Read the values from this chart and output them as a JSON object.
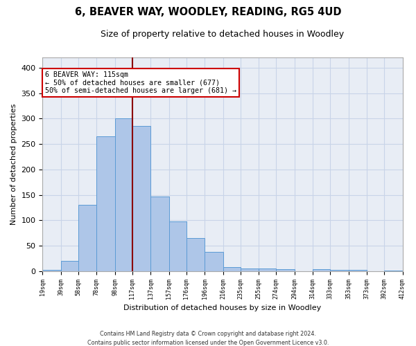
{
  "title": "6, BEAVER WAY, WOODLEY, READING, RG5 4UD",
  "subtitle": "Size of property relative to detached houses in Woodley",
  "xlabel": "Distribution of detached houses by size in Woodley",
  "ylabel": "Number of detached properties",
  "footer_line1": "Contains HM Land Registry data © Crown copyright and database right 2024.",
  "footer_line2": "Contains public sector information licensed under the Open Government Licence v3.0.",
  "annotation_line1": "6 BEAVER WAY: 115sqm",
  "annotation_line2": "← 50% of detached houses are smaller (677)",
  "annotation_line3": "50% of semi-detached houses are larger (681) →",
  "property_line_x": 117,
  "bar_edges": [
    19,
    39,
    58,
    78,
    98,
    117,
    137,
    157,
    176,
    196,
    216,
    235,
    255,
    274,
    294,
    314,
    333,
    353,
    373,
    392,
    412
  ],
  "bar_heights": [
    2,
    20,
    130,
    265,
    300,
    285,
    147,
    98,
    65,
    38,
    8,
    5,
    5,
    4,
    0,
    4,
    3,
    2,
    0,
    1
  ],
  "bar_color": "#aec6e8",
  "bar_edge_color": "#5b9bd5",
  "vline_color": "#8b0000",
  "annotation_box_color": "#ffffff",
  "annotation_box_edge": "#cc0000",
  "background_color": "#ffffff",
  "plot_bg_color": "#e8edf5",
  "grid_color": "#c8d4e8",
  "ylim": [
    0,
    420
  ],
  "yticks": [
    0,
    50,
    100,
    150,
    200,
    250,
    300,
    350,
    400
  ],
  "tick_labels": [
    "19sqm",
    "39sqm",
    "58sqm",
    "78sqm",
    "98sqm",
    "117sqm",
    "137sqm",
    "157sqm",
    "176sqm",
    "196sqm",
    "216sqm",
    "235sqm",
    "255sqm",
    "274sqm",
    "294sqm",
    "314sqm",
    "333sqm",
    "353sqm",
    "373sqm",
    "392sqm",
    "412sqm"
  ]
}
